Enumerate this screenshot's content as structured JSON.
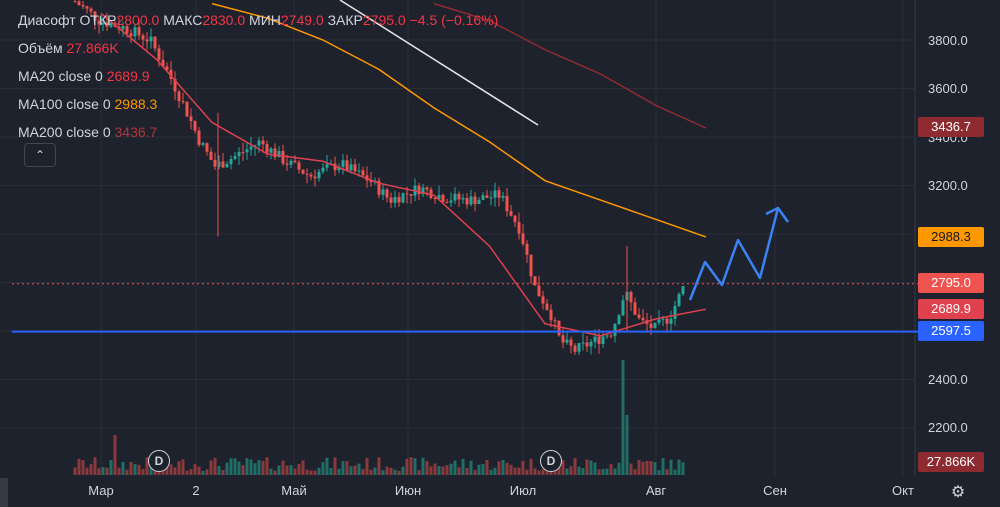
{
  "legend": {
    "symbol": "Диасофт",
    "open_label": "ОТКР",
    "open": "2800.0",
    "high_label": "МАКС",
    "high": "2830.0",
    "low_label": "МИН",
    "low": "2749.0",
    "close_label": "ЗАКР",
    "close": "2795.0",
    "change": "−4.5 (−0.16%)",
    "volume_label": "Объём",
    "volume": "27.866K",
    "ma20_label": "MA20 close 0",
    "ma20": "2689.9",
    "ma100_label": "MA100 close 0",
    "ma100": "2988.3",
    "ma200_label": "MA200 close 0",
    "ma200": "3436.7",
    "collapse_icon": "chevron-up-icon"
  },
  "y_axis": {
    "ticks": [
      "3800.0",
      "3600.0",
      "3400.0",
      "3200.0",
      "2400.0",
      "2200.0"
    ]
  },
  "x_axis": {
    "ticks": [
      "Мар",
      "2",
      "Май",
      "Июн",
      "Июл",
      "Авг",
      "Сен",
      "Окт"
    ]
  },
  "price_tags": {
    "ma200": "3436.7",
    "ma100": "2988.3",
    "close": "2795.0",
    "ma20": "2689.9",
    "support": "2597.5",
    "volume": "27.866K"
  },
  "dividend_marker": "D",
  "settings_icon": "gear-icon",
  "colors": {
    "background": "#1e222d",
    "up": "#26a69a",
    "down": "#ef5350",
    "ma20": "#e0414f",
    "ma100": "#ff9800",
    "ma200": "#8e2b30",
    "support": "#2962ff",
    "forecast": "#3b82f6"
  },
  "chart_data": {
    "type": "line",
    "title": "Диасофт",
    "ylim": [
      2060,
      3950
    ],
    "support_level": 2597.5,
    "series": [
      {
        "name": "MA20",
        "x": [
          0.0,
          0.5,
          1.0,
          1.5,
          2.0,
          2.5,
          3.0,
          3.5,
          4.0,
          4.5,
          5.0,
          5.45
        ],
        "values": [
          3910,
          3720,
          3460,
          3330,
          3300,
          3210,
          3160,
          2950,
          2630,
          2580,
          2650,
          2690
        ]
      },
      {
        "name": "MA100",
        "x": [
          1.0,
          1.5,
          2.0,
          2.5,
          3.0,
          3.5,
          4.0,
          4.5,
          5.0,
          5.45
        ],
        "values": [
          3950,
          3890,
          3800,
          3680,
          3520,
          3380,
          3220,
          3140,
          3060,
          2988
        ]
      },
      {
        "name": "MA200",
        "x": [
          3.0,
          3.5,
          4.0,
          4.5,
          5.0,
          5.45
        ],
        "values": [
          3950,
          3880,
          3760,
          3660,
          3530,
          3437
        ]
      }
    ],
    "x_units": "months from Мар (Мар=0)",
    "grid": true
  }
}
